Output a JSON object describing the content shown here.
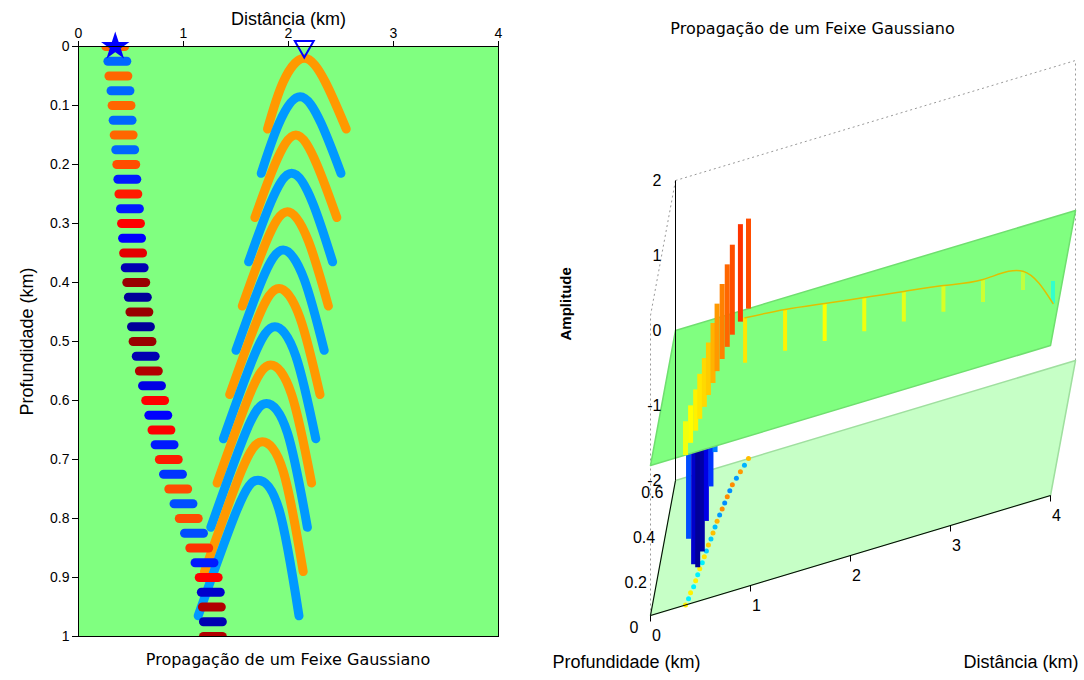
{
  "chart_data": [
    {
      "type": "wavefield",
      "title": "Propagação de um Feixe Gaussiano",
      "xlabel": "Distância (km)",
      "ylabel": "Profundidade (km)",
      "xlim": [
        0,
        4
      ],
      "xticks": [
        0,
        1,
        2,
        3,
        4
      ],
      "ylim": [
        0,
        1
      ],
      "yticks": [
        0,
        0.1,
        0.2,
        0.3,
        0.4,
        0.5,
        0.6,
        0.7,
        0.8,
        0.9,
        1
      ],
      "amplitude_range": [
        -1,
        1
      ],
      "beam": {
        "x": [
          0.35,
          0.37,
          0.38,
          0.4,
          0.41,
          0.42,
          0.43,
          0.445,
          0.455,
          0.465,
          0.475,
          0.49,
          0.5,
          0.51,
          0.52,
          0.535,
          0.55,
          0.565,
          0.58,
          0.595,
          0.61,
          0.64,
          0.67,
          0.7,
          0.73,
          0.76,
          0.79,
          0.82,
          0.86,
          0.9,
          0.95,
          1.0,
          1.05,
          1.1,
          1.15,
          1.2,
          1.24,
          1.26,
          1.27,
          1.28,
          1.28
        ],
        "depth": [
          0,
          0.025,
          0.05,
          0.075,
          0.1,
          0.125,
          0.15,
          0.175,
          0.2,
          0.225,
          0.25,
          0.275,
          0.3,
          0.325,
          0.35,
          0.375,
          0.4,
          0.425,
          0.45,
          0.475,
          0.5,
          0.525,
          0.55,
          0.575,
          0.6,
          0.625,
          0.65,
          0.675,
          0.7,
          0.725,
          0.75,
          0.775,
          0.8,
          0.825,
          0.85,
          0.875,
          0.9,
          0.925,
          0.95,
          0.975,
          1
        ],
        "amplitude": [
          0.55,
          -0.55,
          0.55,
          -0.55,
          0.55,
          -0.55,
          0.55,
          -0.55,
          0.6,
          -0.7,
          0.7,
          -0.7,
          0.75,
          -0.75,
          0.8,
          -0.9,
          0.95,
          -0.95,
          0.95,
          -0.95,
          0.95,
          -0.9,
          0.9,
          -0.8,
          0.75,
          -0.75,
          0.75,
          -0.7,
          0.7,
          -0.65,
          0.6,
          -0.6,
          0.6,
          -0.6,
          0.65,
          -0.7,
          0.75,
          -0.85,
          0.9,
          -0.9,
          0.9
        ]
      },
      "wavefronts": [
        {
          "x": [
            1.8,
            1.95,
            2.15,
            2.35,
            2.55
          ],
          "depth": [
            0.14,
            0.06,
            0.02,
            0.06,
            0.14
          ],
          "amplitude": 0.45
        },
        {
          "x": [
            1.74,
            1.91,
            2.11,
            2.31,
            2.5
          ],
          "depth": [
            0.215,
            0.13,
            0.085,
            0.13,
            0.215
          ],
          "amplitude": -0.45
        },
        {
          "x": [
            1.68,
            1.87,
            2.07,
            2.27,
            2.46
          ],
          "depth": [
            0.29,
            0.2,
            0.15,
            0.2,
            0.29
          ],
          "amplitude": 0.45
        },
        {
          "x": [
            1.62,
            1.83,
            2.03,
            2.23,
            2.42
          ],
          "depth": [
            0.365,
            0.265,
            0.215,
            0.265,
            0.365
          ],
          "amplitude": -0.45
        },
        {
          "x": [
            1.56,
            1.79,
            1.99,
            2.19,
            2.38
          ],
          "depth": [
            0.44,
            0.33,
            0.28,
            0.33,
            0.44
          ],
          "amplitude": 0.45
        },
        {
          "x": [
            1.5,
            1.75,
            1.95,
            2.15,
            2.34
          ],
          "depth": [
            0.515,
            0.395,
            0.345,
            0.395,
            0.515
          ],
          "amplitude": -0.45
        },
        {
          "x": [
            1.44,
            1.71,
            1.91,
            2.11,
            2.3
          ],
          "depth": [
            0.59,
            0.46,
            0.41,
            0.46,
            0.59
          ],
          "amplitude": 0.45
        },
        {
          "x": [
            1.38,
            1.67,
            1.87,
            2.07,
            2.26
          ],
          "depth": [
            0.665,
            0.525,
            0.475,
            0.525,
            0.665
          ],
          "amplitude": -0.45
        },
        {
          "x": [
            1.32,
            1.63,
            1.83,
            2.03,
            2.22
          ],
          "depth": [
            0.74,
            0.59,
            0.54,
            0.59,
            0.74
          ],
          "amplitude": 0.45
        },
        {
          "x": [
            1.26,
            1.59,
            1.79,
            1.99,
            2.18
          ],
          "depth": [
            0.815,
            0.655,
            0.605,
            0.655,
            0.815
          ],
          "amplitude": -0.45
        },
        {
          "x": [
            1.2,
            1.55,
            1.75,
            1.95,
            2.14
          ],
          "depth": [
            0.89,
            0.72,
            0.67,
            0.72,
            0.89
          ],
          "amplitude": 0.45
        },
        {
          "x": [
            1.14,
            1.51,
            1.71,
            1.91,
            2.1
          ],
          "depth": [
            0.965,
            0.785,
            0.735,
            0.785,
            0.965
          ],
          "amplitude": -0.45
        }
      ],
      "markers": [
        {
          "x": 0.35,
          "depth": 0,
          "marker": "star",
          "color": "#0000ff"
        },
        {
          "x": 2.15,
          "depth": 0,
          "marker": "triangle",
          "color": "#0000ff"
        }
      ]
    },
    {
      "type": "surface3d",
      "title": "Propagação de um Feixe Gaussiano",
      "xlabel": "Distância (km)",
      "ylabel": "Profundidade (km)",
      "zlabel": "Amplitude",
      "xlim": [
        0,
        4
      ],
      "xticks": [
        0,
        1,
        2,
        3,
        4
      ],
      "ylim": [
        0,
        0.6
      ],
      "yticks": [
        0,
        0.2,
        0.4,
        0.6
      ],
      "zlim": [
        -2,
        2
      ],
      "zticks": [
        -2,
        -1,
        0,
        1,
        2
      ],
      "ridge": {
        "distance": [
          0.35,
          0.37,
          0.38,
          0.4,
          0.41,
          0.42,
          0.43,
          0.445,
          0.455,
          0.465,
          0.475,
          0.49,
          0.5,
          0.51,
          0.52,
          0.535,
          0.55,
          0.565,
          0.58,
          0.595,
          0.61,
          0.64,
          0.67,
          0.7,
          0.73
        ],
        "depth": [
          0,
          0.025,
          0.05,
          0.075,
          0.1,
          0.125,
          0.15,
          0.175,
          0.2,
          0.225,
          0.25,
          0.275,
          0.3,
          0.325,
          0.35,
          0.375,
          0.4,
          0.425,
          0.45,
          0.475,
          0.5,
          0.525,
          0.55,
          0.575,
          0.6
        ],
        "amplitude": [
          0.45,
          -1.2,
          0.5,
          -1.7,
          0.55,
          -1.9,
          0.6,
          -1.85,
          0.65,
          -1.6,
          0.7,
          -1.3,
          0.8,
          -1.0,
          0.9,
          -0.8,
          1.0,
          -0.6,
          1.1,
          -0.5,
          1.2,
          -0.4,
          1.3,
          -0.3,
          1.2
        ]
      },
      "sheet": {
        "distance": [
          0.8,
          1.2,
          1.6,
          2.0,
          2.4,
          2.8,
          3.2,
          3.6,
          3.9
        ],
        "depth": [
          0.35,
          0.35,
          0.34,
          0.33,
          0.32,
          0.31,
          0.3,
          0.3,
          0.3
        ],
        "amplitude": [
          0.6,
          0.55,
          0.5,
          0.45,
          0.4,
          0.35,
          0.3,
          0.25,
          -0.3
        ]
      }
    }
  ]
}
